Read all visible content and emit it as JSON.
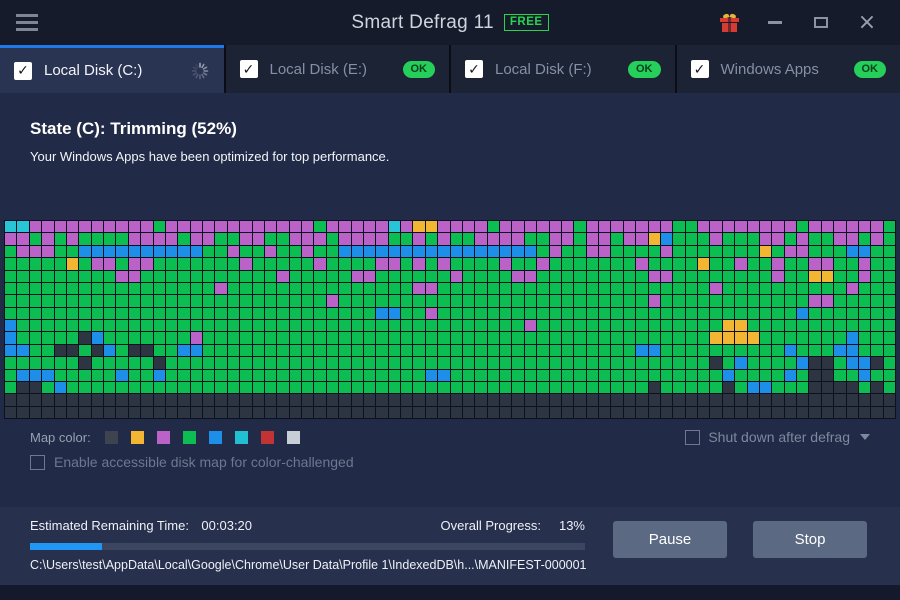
{
  "titlebar": {
    "title": "Smart Defrag 11",
    "badge": "FREE"
  },
  "tabs": [
    {
      "label": "Local Disk (C:)",
      "checked": true,
      "status": "working"
    },
    {
      "label": "Local Disk (E:)",
      "checked": true,
      "badge": "OK"
    },
    {
      "label": "Local Disk (F:)",
      "checked": true,
      "badge": "OK"
    },
    {
      "label": "Windows Apps",
      "checked": true,
      "badge": "OK"
    }
  ],
  "status": {
    "heading": "State (C): Trimming (52%)",
    "subheading": "Your Windows Apps have been optimized for top performance."
  },
  "disk_map": {
    "cols": 16,
    "columns": 72,
    "palette": {
      "G": "#0cbd52",
      "P": "#bb62c9",
      "B": "#1e8fe8",
      "C": "#29c5d6",
      "Y": "#f2b632",
      "D": "#2e3542",
      "R": "#c23434",
      "W": "#c7ced6"
    },
    "rows": [
      "CCPPPPPPPPPPGPPPPPPPPPPPPGPPPPPCPYYPPPPGPPPPPPGPPPPPPPGGPPPPPPPPGPPPPPP",
      "PPGPGPGGGGPPPPGPPGGPPGGPPPGPPPPGGPGPGGPPPPGGPPGPPGPPYBGGGPGGGPPGPGGPPGP",
      "GPPPGGBBBBBBBBBBGGPGGPGGPGGBBBBBBBBBBBBBBBBGPGGPPGGGGPGGGGGGGYGPPGGGBBG",
      "GGGGGYGPPGPPGGGGGGGPGGGGGPGGGGPPGPGPGGGGPGGPGGGGGGGPGGGGYGGPGGPGGPPGGPG",
      "GGGGGGGGGPPGGGGGGGGGGGPGGGGGPPGGGGGGPGGGGPPGGGGGGGGGPPGGGGGGGGPGGYYGGPG",
      "GGGGGGGGGGGGGGGGGPGGGGGGGGGGGGGGGPPGGGGGGGGGGGGGGGGGGGGGGPGGGGGGGGGGPGG",
      "GGGGGGGGGGGGGGGGGGGGGGGGGGPGGGGGGGGGGGGGGGGGGGGGGGGGPGGGGGGGGGGGGPPGGGG",
      "GGGGGGGGGGGGGGGGGGGGGGGGGGGGGGBBGGPGGGGGGGGGGGGGGGGGGGGGGGGGGGGGBGGGGGG",
      "BGGGGGGGGGGGGGGGGGGGGGGGGGGGGGGGGGGGGGGGGGPGGGGGGGGGGGGGGGYYGGGGGGGGGGG",
      "BGGGGGDBGGGGGGGPGGGGGGGGGGGGGGGGGGGGGGGGGGGGGGGGGGGGGGGGGYYYYGGGGGGGBGG",
      "BBGGDDGDBGDDGGBBGGGGGGGGGGGGGGGGGGGGGGGGGGGGGGGGGGGBBGGGGGGGGGGBGGGBBGG",
      "GGGGGGDGGGGGDGGGGGGGGGGGGGGGGGGGGGGGGGGGGGGGGGGGGGGGGGGGGDGBGGGGBDDGBBD",
      "GBBBGGGGGBGGBGGGGGGGGGGGGGGGGGGGGGBBGGGGGGGGGGGGGGGGGGGGGGBGGGGBGDDGGBG",
      "GDDGBGGGGGGGGGGGGGGGGGGGGGGGGGGGGGGGGGGGGGGGGGGGGGGGDGGGGGDGBBGGGDDDDGD",
      "DDDDDDDDDDDDDDDDDDDDDDDDDDDDDDDDDDDDDDDDDDDDDDDDDDDDDDDDDDDDDDDDDDDDDDDD",
      "DDDDDDDDDDDDDDDDDDDDDDDDDDDDDDDDDDDDDDDDDDDDDDDDDDDDDDDDDDDDDDDDDDDDDDDD"
    ]
  },
  "legend": {
    "label": "Map color:",
    "colors": [
      "#3d4450",
      "#f2b632",
      "#bb62c9",
      "#0cbd52",
      "#1e8fe8",
      "#22bfd3",
      "#c23434",
      "#c7ced6"
    ]
  },
  "options": {
    "shutdown_label": "Shut down after defrag",
    "accessible_label": "Enable accessible disk map for color-challenged"
  },
  "bottom": {
    "remaining_label": "Estimated Remaining Time:",
    "remaining_value": "00:03:20",
    "progress_label": "Overall Progress:",
    "progress_value": "13%",
    "current_file": "C:\\Users\\test\\AppData\\Local\\Google\\Chrome\\User Data\\Profile 1\\IndexedDB\\h...\\MANIFEST-000001",
    "pause_label": "Pause",
    "stop_label": "Stop"
  },
  "colors": {
    "accent_blue": "#2079e8",
    "ok_green": "#25cf59",
    "free_green": "#2ad24e",
    "progress_blue": "#2196f3"
  }
}
